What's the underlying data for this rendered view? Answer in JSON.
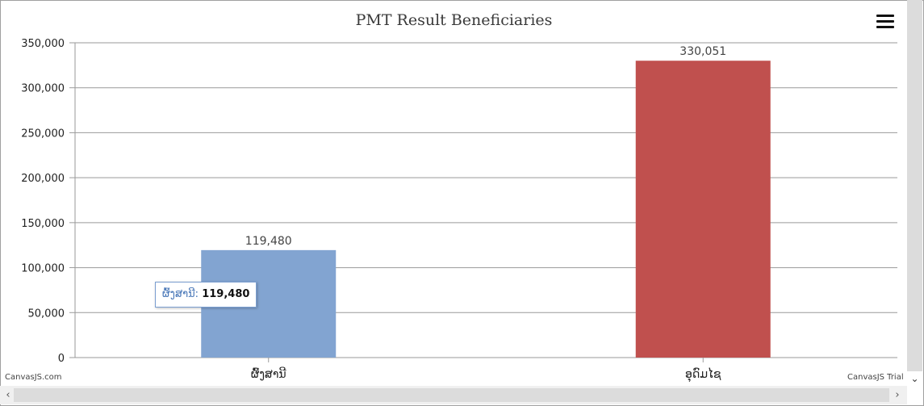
{
  "chart_data": {
    "type": "bar",
    "title": "PMT Result Beneficiaries",
    "categories": [
      "ຜົ້ງສານີ",
      "ອຸດົມໄຊ"
    ],
    "values": [
      119480,
      330051
    ],
    "value_labels": [
      "119,480",
      "330,051"
    ],
    "bar_colors": [
      "#82a4d1",
      "#c0504e"
    ],
    "ylim": [
      0,
      350000
    ],
    "y_ticks": [
      0,
      50000,
      100000,
      150000,
      200000,
      250000,
      300000,
      350000
    ],
    "y_tick_labels": [
      "0",
      "50,000",
      "100,000",
      "150,000",
      "200,000",
      "250,000",
      "300,000",
      "350,000"
    ],
    "grid": true,
    "xlabel": "",
    "ylabel": ""
  },
  "tooltip": {
    "name": "ຜົ້ງສານີ:",
    "value": "119,480"
  },
  "credits": {
    "left": "CanvasJS.com",
    "right": "CanvasJS Trial"
  },
  "icons": {
    "menu": "hamburger-menu-icon",
    "scroll_left": "chevron-left-icon",
    "scroll_right": "chevron-right-icon",
    "scroll_down": "chevron-down-icon"
  }
}
